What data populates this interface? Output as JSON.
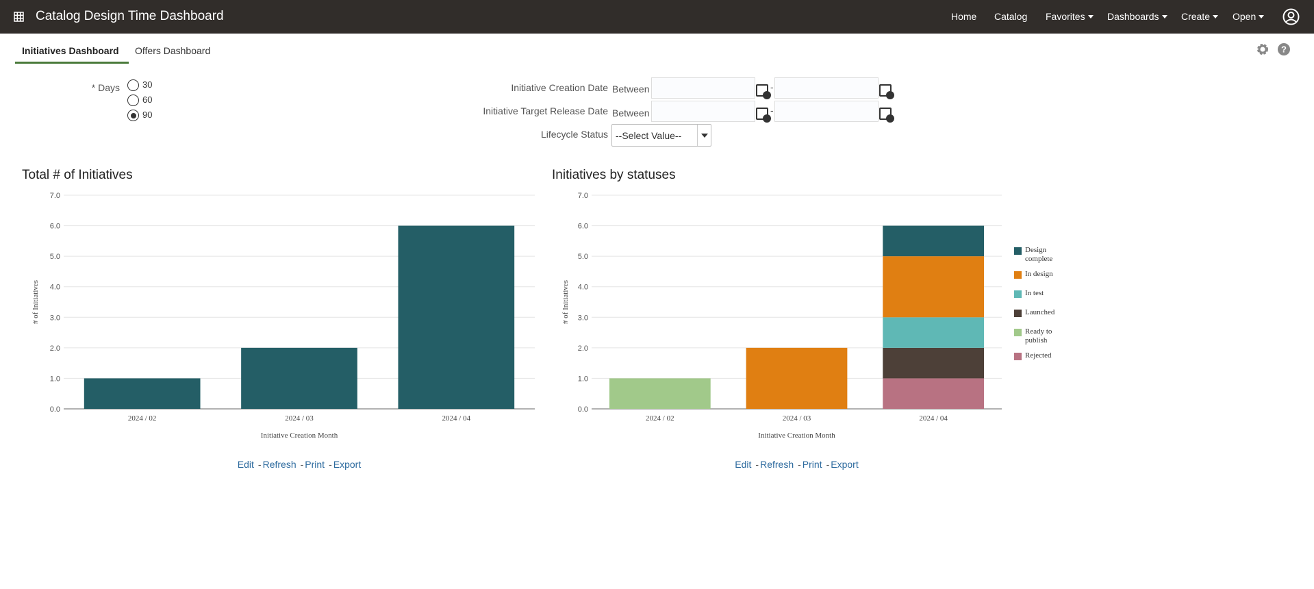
{
  "header": {
    "title": "Catalog Design Time Dashboard",
    "nav": [
      "Home",
      "Catalog",
      "Favorites",
      "Dashboards",
      "Create",
      "Open"
    ]
  },
  "tabs": [
    "Initiatives Dashboard",
    "Offers Dashboard"
  ],
  "help_icon": "?",
  "filters": {
    "days": {
      "label": "* Days",
      "options": [
        "30",
        "60",
        "90"
      ],
      "selected": "90"
    },
    "creation_date": {
      "label": "Initiative Creation Date",
      "operator": "Between"
    },
    "release_date": {
      "label": "Initiative Target Release Date",
      "operator": "Between"
    },
    "range_separator": "-",
    "lifecycle": {
      "label": "Lifecycle Status",
      "placeholder": "--Select Value--"
    }
  },
  "chart_actions": {
    "items": [
      "Edit",
      "Refresh",
      "Print",
      "Export"
    ],
    "separator": "-"
  },
  "chart_data": [
    {
      "type": "bar",
      "title": "Total # of Initiatives",
      "x_label": "Initiative Creation Month",
      "y_label": "# of Initiatives",
      "categories": [
        "2024 / 02",
        "2024 / 03",
        "2024 / 04"
      ],
      "values": [
        1,
        2,
        6
      ],
      "color": "#245e66",
      "ylim": [
        0,
        7
      ],
      "yticks": [
        {
          "value": 0,
          "label": "0.0"
        },
        {
          "value": 1,
          "label": "1.0"
        },
        {
          "value": 2,
          "label": "2.0"
        },
        {
          "value": 3,
          "label": "3.0"
        },
        {
          "value": 4,
          "label": "4.0"
        },
        {
          "value": 5,
          "label": "5.0"
        },
        {
          "value": 6,
          "label": "6.0"
        },
        {
          "value": 7,
          "label": "7.0"
        }
      ],
      "grid": true
    },
    {
      "type": "stacked_bar",
      "title": "Initiatives by statuses",
      "x_label": "Initiative Creation Month",
      "y_label": "# of Initiatives",
      "categories": [
        "2024 / 02",
        "2024 / 03",
        "2024 / 04"
      ],
      "series": [
        {
          "name": "Design complete",
          "color": "#245e66",
          "values": [
            null,
            null,
            1
          ]
        },
        {
          "name": "In design",
          "color": "#e07f12",
          "values": [
            null,
            2,
            2
          ]
        },
        {
          "name": "In test",
          "color": "#5fb8b5",
          "values": [
            null,
            null,
            1
          ]
        },
        {
          "name": "Launched",
          "color": "#4d4038",
          "values": [
            null,
            null,
            1
          ]
        },
        {
          "name": "Ready to publish",
          "color": "#a1c98a",
          "values": [
            1,
            null,
            null
          ]
        },
        {
          "name": "Rejected",
          "color": "#b87282",
          "values": [
            null,
            null,
            1
          ]
        }
      ],
      "ylim": [
        0,
        7
      ],
      "yticks": [
        {
          "value": 0,
          "label": "0.0"
        },
        {
          "value": 1,
          "label": "1.0"
        },
        {
          "value": 2,
          "label": "2.0"
        },
        {
          "value": 3,
          "label": "3.0"
        },
        {
          "value": 4,
          "label": "4.0"
        },
        {
          "value": 5,
          "label": "5.0"
        },
        {
          "value": 6,
          "label": "6.0"
        },
        {
          "value": 7,
          "label": "7.0"
        }
      ],
      "grid": true,
      "legend": "right"
    }
  ]
}
